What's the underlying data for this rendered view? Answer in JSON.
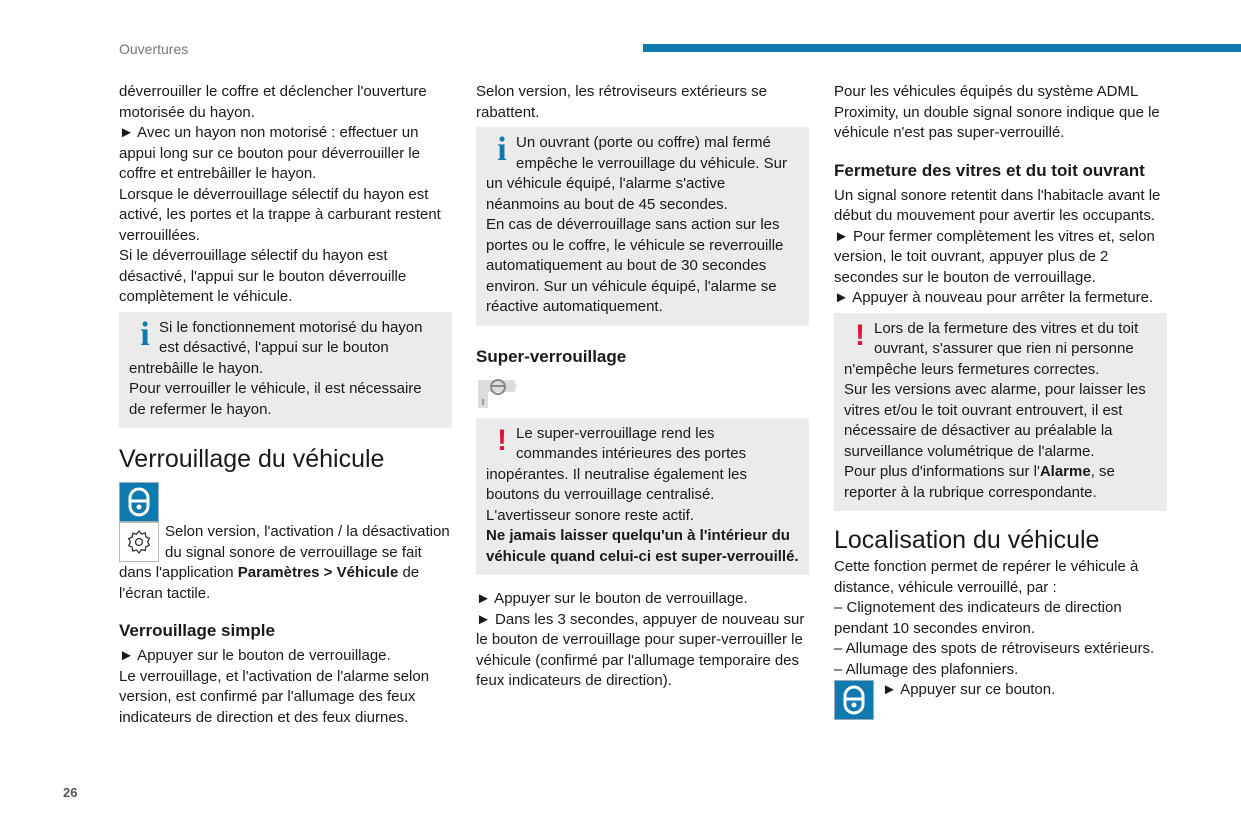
{
  "header": {
    "section": "Ouvertures",
    "page_number": "26",
    "accent": "#0f7ab0",
    "warning_color": "#e0153c"
  },
  "col1": {
    "p1": "déverrouiller le coffre et déclencher l'ouverture motorisée du hayon.",
    "p2": "► Avec un hayon non motorisé : effectuer un appui long sur ce bouton pour déverrouiller le coffre et entrebâiller le hayon.",
    "p3": "Lorsque le déverrouillage sélectif du hayon est activé, les portes et la trappe à carburant restent verrouillées.",
    "p4": "Si le déverrouillage sélectif du hayon est désactivé, l'appui sur le bouton déverrouille complètement le véhicule.",
    "info1": "Si le fonctionnement motorisé du hayon est désactivé, l'appui sur le bouton entrebâille le hayon.",
    "info2": "Pour verrouiller le véhicule, il est nécessaire de refermer le hayon.",
    "h1": "Verrouillage du véhicule",
    "settings_text": "Selon version, l'activation / la désactivation du signal sonore de verrouillage se fait dans l'application ",
    "settings_bold": "Paramètres > Véhicule",
    "settings_end": " de l'écran tactile.",
    "h2": "Verrouillage simple",
    "p5": "► Appuyer sur le bouton de verrouillage.",
    "p6": "Le verrouillage, et l'activation de l'alarme selon version, est confirmé par l'allumage des feux indicateurs de direction et des feux diurnes."
  },
  "col2": {
    "p1": "Selon version, les rétroviseurs extérieurs se rabattent.",
    "info1": "Un ouvrant (porte ou coffre) mal fermé empêche le verrouillage du véhicule. Sur un véhicule équipé, l'alarme s'active néanmoins au bout de 45 secondes.",
    "info2": "En cas de déverrouillage sans action sur les portes ou le coffre, le véhicule se reverrouille automatiquement au bout de 30 secondes environ. Sur un véhicule équipé, l'alarme se réactive automatiquement.",
    "h2": "Super-verrouillage",
    "warn1": "Le super-verrouillage rend les commandes intérieures des portes inopérantes. Il neutralise également les boutons du verrouillage centralisé.",
    "warn2": "L'avertisseur sonore reste actif.",
    "warn_bold": "Ne jamais laisser quelqu'un à l'intérieur du véhicule quand celui-ci est super-verrouillé.",
    "p2": "► Appuyer sur le bouton de verrouillage.",
    "p3": "► Dans les 3 secondes, appuyer de nouveau sur le bouton de verrouillage pour super-verrouiller le véhicule (confirmé par l'allumage temporaire des feux indicateurs de direction)."
  },
  "col3": {
    "p1": "Pour les véhicules équipés du système ADML Proximity, un double signal sonore indique que le véhicule n'est pas super-verrouillé.",
    "h2": "Fermeture des vitres et du toit ouvrant",
    "p2": "Un signal sonore retentit dans l'habitacle avant le début du mouvement pour avertir les occupants.",
    "p3": "► Pour fermer complètement les vitres et, selon version, le toit ouvrant, appuyer plus de 2 secondes sur le bouton de verrouillage.",
    "p4": "► Appuyer à nouveau pour arrêter la fermeture.",
    "warn1": "Lors de la fermeture des vitres et du toit ouvrant, s'assurer que rien ni personne n'empêche leurs fermetures correctes.",
    "warn2": "Sur les versions avec alarme, pour laisser les vitres et/ou le toit ouvrant entrouvert, il est nécessaire de désactiver au préalable la surveillance volumétrique de l'alarme.",
    "warn3_start": "Pour plus d'informations sur l'",
    "warn3_bold": "Alarme",
    "warn3_end": ", se reporter à la rubrique correspondante.",
    "h1": "Localisation du véhicule",
    "p5": "Cette fonction permet de repérer le véhicule à distance, véhicule verrouillé, par :",
    "l1": "– Clignotement des indicateurs de direction pendant 10 secondes environ.",
    "l2": "– Allumage des spots de rétroviseurs extérieurs.",
    "l3": "– Allumage des plafonniers.",
    "p6": "► Appuyer sur ce bouton."
  }
}
